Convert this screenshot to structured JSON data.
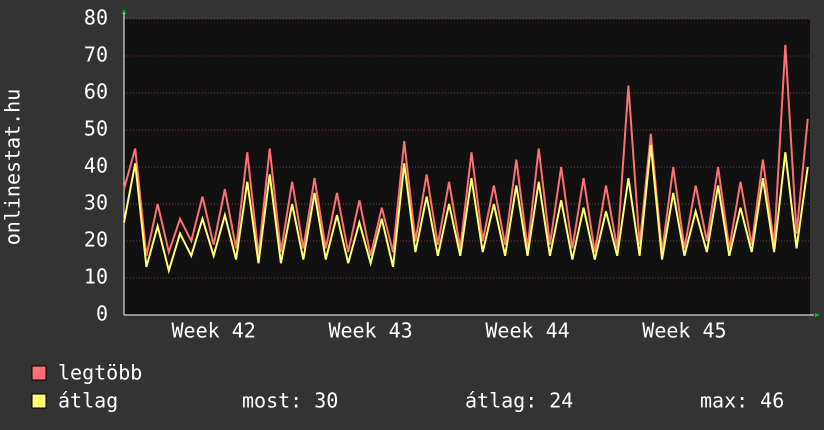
{
  "chart_data": {
    "type": "line",
    "y_label": "onlinestat.hu",
    "x": [
      0,
      0.5,
      1,
      1.5,
      2,
      2.5,
      3,
      3.5,
      4,
      4.5,
      5,
      5.5,
      6,
      6.5,
      7,
      7.5,
      8,
      8.5,
      9,
      9.5,
      10,
      10.5,
      11,
      11.5,
      12,
      12.5,
      13,
      13.5,
      14,
      14.5,
      15,
      15.5,
      16,
      16.5,
      17,
      17.5,
      18,
      18.5,
      19,
      19.5,
      20,
      20.5,
      21,
      21.5,
      22,
      22.5,
      23,
      23.5,
      24,
      24.5,
      25,
      25.5,
      26,
      26.5,
      27,
      27.5,
      28,
      28.5,
      29,
      29.5,
      30,
      30.5
    ],
    "xlim": [
      0,
      30.6
    ],
    "xticks": [
      {
        "value": 4,
        "label": "Week 42"
      },
      {
        "value": 11,
        "label": "Week 43"
      },
      {
        "value": 18,
        "label": "Week 44"
      },
      {
        "value": 25,
        "label": "Week 45"
      }
    ],
    "ylim": [
      0,
      80
    ],
    "yticks": [
      0,
      10,
      20,
      30,
      40,
      50,
      60,
      70,
      80
    ],
    "grid": true,
    "series": [
      {
        "name": "legtöbb",
        "color": "#ff7070",
        "values": [
          34,
          45,
          16,
          30,
          17,
          26,
          20,
          32,
          19,
          34,
          18,
          44,
          16,
          45,
          17,
          36,
          18,
          37,
          18,
          33,
          17,
          31,
          16,
          29,
          17,
          47,
          20,
          38,
          19,
          36,
          18,
          44,
          20,
          35,
          19,
          42,
          18,
          45,
          19,
          40,
          18,
          37,
          17,
          35,
          18,
          62,
          19,
          49,
          17,
          40,
          18,
          35,
          20,
          40,
          18,
          36,
          19,
          42,
          19,
          73,
          22,
          53
        ]
      },
      {
        "name": "átlag",
        "color": "#ffff70",
        "values": [
          25,
          41,
          13,
          24,
          12,
          22,
          16,
          26,
          16,
          27,
          15,
          36,
          14,
          38,
          14,
          30,
          15,
          33,
          15,
          27,
          14,
          25,
          14,
          26,
          13,
          41,
          17,
          32,
          16,
          30,
          16,
          37,
          17,
          30,
          16,
          35,
          16,
          36,
          16,
          31,
          15,
          29,
          15,
          28,
          16,
          37,
          16,
          46,
          15,
          33,
          16,
          28,
          17,
          35,
          16,
          29,
          17,
          37,
          17,
          44,
          18,
          40
        ]
      }
    ],
    "stats": [
      {
        "label": "most:",
        "value": 30
      },
      {
        "label": "átlag:",
        "value": 24
      },
      {
        "label": "max:",
        "value": 46
      }
    ]
  }
}
